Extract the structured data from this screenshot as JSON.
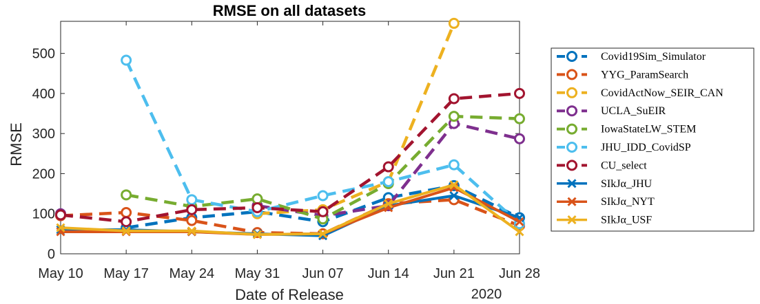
{
  "chart_data": {
    "type": "line",
    "title": "RMSE on all datasets",
    "xlabel": "Date of Release",
    "ylabel": "RMSE",
    "x_secondary_label": "2020",
    "categories": [
      "May 10",
      "May 17",
      "May 24",
      "May 31",
      "Jun 07",
      "Jun 14",
      "Jun 21",
      "Jun 28"
    ],
    "ylim": [
      0,
      580
    ],
    "yticks": [
      0,
      100,
      200,
      300,
      400,
      500
    ],
    "legend_position": "outside-right",
    "series": [
      {
        "name": "Covid19Sim_Simulator",
        "color": "#0072BD",
        "dash": true,
        "marker": "circle",
        "values": [
          null,
          65,
          90,
          105,
          80,
          140,
          170,
          90
        ]
      },
      {
        "name": "YYG_ParamSearch",
        "color": "#D95319",
        "dash": true,
        "marker": "circle",
        "values": [
          95,
          103,
          83,
          53,
          50,
          125,
          135,
          70
        ]
      },
      {
        "name": "CovidActNow_SEIR_CAN",
        "color": "#EDB120",
        "dash": true,
        "marker": "circle",
        "values": [
          null,
          null,
          null,
          100,
          110,
          180,
          575,
          null
        ]
      },
      {
        "name": "UCLA_SuEIR",
        "color": "#7E2F8E",
        "dash": true,
        "marker": "circle",
        "values": [
          100,
          null,
          null,
          120,
          95,
          120,
          325,
          287
        ]
      },
      {
        "name": "IowaStateLW_STEM",
        "color": "#77AC30",
        "dash": true,
        "marker": "circle",
        "values": [
          null,
          147,
          118,
          137,
          87,
          175,
          343,
          337
        ]
      },
      {
        "name": "JHU_IDD_CovidSP",
        "color": "#4DBEEE",
        "dash": true,
        "marker": "circle",
        "values": [
          null,
          483,
          135,
          105,
          145,
          180,
          222,
          75
        ]
      },
      {
        "name": "CU_select",
        "color": "#A2142F",
        "dash": true,
        "marker": "circle",
        "values": [
          97,
          80,
          110,
          115,
          105,
          217,
          387,
          400
        ]
      },
      {
        "name": "SIkJα_JHU",
        "color": "#0072BD",
        "dash": false,
        "marker": "x",
        "values": [
          60,
          60,
          55,
          50,
          45,
          120,
          145,
          90
        ]
      },
      {
        "name": "SIkJα_NYT",
        "color": "#D95319",
        "dash": false,
        "marker": "x",
        "values": [
          55,
          55,
          55,
          48,
          50,
          115,
          165,
          80
        ]
      },
      {
        "name": "SIkJα_USF",
        "color": "#EDB120",
        "dash": false,
        "marker": "x",
        "values": [
          65,
          57,
          57,
          48,
          50,
          125,
          172,
          55
        ]
      }
    ]
  }
}
